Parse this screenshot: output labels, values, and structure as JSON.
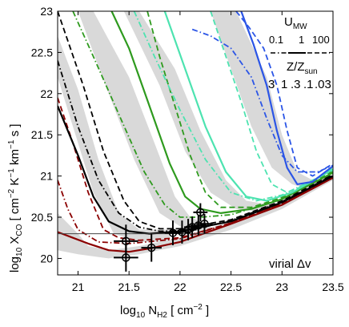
{
  "chart_data": {
    "type": "line",
    "xlabel": {
      "prefix": "log",
      "sub": "10",
      "main": " N",
      "mainsub": "H2",
      "unit": " [ cm",
      "unitsup": "−2",
      "close": " ]"
    },
    "ylabel": {
      "prefix": "log",
      "sub": "10",
      "main": " X",
      "mainsub": "CO",
      "unit": " [ cm",
      "sup1": "−2",
      "k": " K",
      "sup2": "−1",
      "km": " km",
      "sup3": "−1",
      "s": " s ]"
    },
    "xlim": [
      20.8,
      23.5
    ],
    "ylim": [
      19.8,
      23.0
    ],
    "xticks": [
      21,
      21.5,
      22,
      22.5,
      23,
      23.5
    ],
    "xtick_labels": [
      "21",
      "21.5",
      "22",
      "22.5",
      "23",
      "23.5"
    ],
    "yticks": [
      20,
      20.5,
      21,
      21.5,
      22,
      22.5,
      23
    ],
    "ytick_labels": [
      "20",
      "20.5",
      "21",
      "21.5",
      "22",
      "22.5",
      "23"
    ],
    "hline": 20.3,
    "annotation": "virial Δv",
    "legend": {
      "umw_title": "U",
      "umw_title_sub": "MW",
      "umw_values": [
        "0.1",
        "1",
        "100"
      ],
      "z_title": "Z/Z",
      "z_title_sub": "sun",
      "z_values": [
        {
          "label": "3",
          "color": "#8b0000"
        },
        {
          "label": "1",
          "color": "#000000"
        },
        {
          "label": ".3",
          "color": "#2e9a1e"
        },
        {
          "label": ".1",
          "color": "#4de3b0"
        },
        {
          "label": ".03",
          "color": "#2b55e6"
        }
      ]
    },
    "bands": [
      {
        "points": [
          [
            20.8,
            20.55
          ],
          [
            21.0,
            20.3
          ],
          [
            21.1,
            20.15
          ],
          [
            21.3,
            20.1
          ],
          [
            21.6,
            20.15
          ],
          [
            22.0,
            20.25
          ],
          [
            22.5,
            20.45
          ],
          [
            23.0,
            20.7
          ],
          [
            23.5,
            21.0
          ],
          [
            23.5,
            20.95
          ],
          [
            23.0,
            20.6
          ],
          [
            22.5,
            20.35
          ],
          [
            22.0,
            20.15
          ],
          [
            21.6,
            20.05
          ],
          [
            21.3,
            20.0
          ],
          [
            21.0,
            20.05
          ],
          [
            20.8,
            20.1
          ]
        ]
      },
      {
        "points": [
          [
            20.8,
            22.7
          ],
          [
            21.0,
            22.05
          ],
          [
            21.2,
            21.2
          ],
          [
            21.4,
            20.55
          ],
          [
            21.6,
            20.35
          ],
          [
            21.9,
            20.35
          ],
          [
            21.9,
            20.2
          ],
          [
            21.6,
            20.2
          ],
          [
            21.35,
            20.3
          ],
          [
            21.15,
            20.8
          ],
          [
            21.0,
            21.4
          ],
          [
            20.8,
            22.2
          ]
        ]
      },
      {
        "points": [
          [
            21.15,
            23.0
          ],
          [
            21.5,
            22.2
          ],
          [
            21.75,
            21.4
          ],
          [
            21.95,
            20.75
          ],
          [
            22.1,
            20.5
          ],
          [
            22.3,
            20.4
          ],
          [
            22.3,
            20.3
          ],
          [
            22.05,
            20.35
          ],
          [
            21.8,
            20.55
          ],
          [
            21.55,
            21.2
          ],
          [
            21.3,
            22.0
          ],
          [
            21.0,
            23.0
          ]
        ]
      },
      {
        "points": [
          [
            21.6,
            23.0
          ],
          [
            21.95,
            22.3
          ],
          [
            22.2,
            21.55
          ],
          [
            22.45,
            20.95
          ],
          [
            22.65,
            20.7
          ],
          [
            22.9,
            20.65
          ],
          [
            22.9,
            20.55
          ],
          [
            22.55,
            20.6
          ],
          [
            22.3,
            20.8
          ],
          [
            22.05,
            21.3
          ],
          [
            21.8,
            22.1
          ],
          [
            21.45,
            23.0
          ]
        ]
      },
      {
        "points": [
          [
            22.55,
            23.0
          ],
          [
            22.85,
            22.2
          ],
          [
            23.0,
            21.5
          ],
          [
            23.15,
            21.05
          ],
          [
            23.3,
            20.95
          ],
          [
            23.3,
            20.82
          ],
          [
            23.1,
            20.9
          ],
          [
            22.9,
            21.1
          ],
          [
            22.7,
            21.6
          ],
          [
            22.5,
            22.3
          ],
          [
            22.3,
            23.0
          ]
        ]
      }
    ],
    "series": [
      {
        "color": "#8b0000",
        "style": "solid",
        "points": [
          [
            20.8,
            20.32
          ],
          [
            20.95,
            20.25
          ],
          [
            21.1,
            20.18
          ],
          [
            21.3,
            20.1
          ],
          [
            21.5,
            20.08
          ],
          [
            21.7,
            20.12
          ],
          [
            22.0,
            20.2
          ],
          [
            22.5,
            20.42
          ],
          [
            23.0,
            20.65
          ],
          [
            23.5,
            20.98
          ]
        ]
      },
      {
        "color": "#8b0000",
        "style": "dash",
        "points": [
          [
            20.8,
            21.95
          ],
          [
            20.95,
            21.4
          ],
          [
            21.1,
            20.8
          ],
          [
            21.25,
            20.35
          ],
          [
            21.4,
            20.25
          ],
          [
            21.6,
            20.22
          ],
          [
            22.0,
            20.25
          ],
          [
            22.5,
            20.43
          ],
          [
            23.0,
            20.67
          ],
          [
            23.5,
            21.0
          ]
        ]
      },
      {
        "color": "#8b0000",
        "style": "dashdot",
        "points": [
          [
            20.8,
            20.95
          ],
          [
            20.9,
            20.6
          ],
          [
            21.0,
            20.35
          ],
          [
            21.2,
            20.2
          ],
          [
            21.5,
            20.18
          ],
          [
            22.0,
            20.24
          ],
          [
            22.5,
            20.43
          ],
          [
            23.0,
            20.66
          ],
          [
            23.5,
            20.99
          ]
        ]
      },
      {
        "color": "#000000",
        "style": "solid",
        "points": [
          [
            20.8,
            21.85
          ],
          [
            21.0,
            21.25
          ],
          [
            21.15,
            20.75
          ],
          [
            21.3,
            20.45
          ],
          [
            21.5,
            20.33
          ],
          [
            21.7,
            20.3
          ],
          [
            22.0,
            20.33
          ],
          [
            22.5,
            20.45
          ],
          [
            23.0,
            20.68
          ],
          [
            23.5,
            21.0
          ]
        ]
      },
      {
        "color": "#000000",
        "style": "dash",
        "points": [
          [
            20.8,
            23.0
          ],
          [
            21.05,
            22.1
          ],
          [
            21.25,
            21.3
          ],
          [
            21.45,
            20.7
          ],
          [
            21.6,
            20.45
          ],
          [
            21.8,
            20.36
          ],
          [
            22.0,
            20.36
          ],
          [
            22.5,
            20.47
          ],
          [
            23.0,
            20.7
          ],
          [
            23.5,
            21.02
          ]
        ]
      },
      {
        "color": "#000000",
        "style": "dashdot",
        "points": [
          [
            20.8,
            22.4
          ],
          [
            21.0,
            21.6
          ],
          [
            21.2,
            20.95
          ],
          [
            21.4,
            20.55
          ],
          [
            21.6,
            20.38
          ],
          [
            21.8,
            20.33
          ],
          [
            22.1,
            20.34
          ],
          [
            22.5,
            20.46
          ],
          [
            23.0,
            20.69
          ],
          [
            23.5,
            21.01
          ]
        ]
      },
      {
        "color": "#2e9a1e",
        "style": "solid",
        "points": [
          [
            21.33,
            23.0
          ],
          [
            21.5,
            22.55
          ],
          [
            21.7,
            21.85
          ],
          [
            21.9,
            21.15
          ],
          [
            22.05,
            20.75
          ],
          [
            22.2,
            20.6
          ],
          [
            22.4,
            20.55
          ],
          [
            22.7,
            20.6
          ],
          [
            23.0,
            20.72
          ],
          [
            23.5,
            21.04
          ]
        ]
      },
      {
        "color": "#2e9a1e",
        "style": "dash",
        "points": [
          [
            21.68,
            23.0
          ],
          [
            21.8,
            22.45
          ],
          [
            21.95,
            21.85
          ],
          [
            22.1,
            21.25
          ],
          [
            22.25,
            20.8
          ],
          [
            22.4,
            20.62
          ],
          [
            22.7,
            20.62
          ],
          [
            23.0,
            20.74
          ],
          [
            23.5,
            21.06
          ]
        ]
      },
      {
        "color": "#2e9a1e",
        "style": "dashdot",
        "points": [
          [
            20.95,
            23.0
          ],
          [
            21.15,
            22.45
          ],
          [
            21.4,
            21.75
          ],
          [
            21.65,
            21.05
          ],
          [
            21.85,
            20.65
          ],
          [
            22.0,
            20.5
          ],
          [
            22.2,
            20.5
          ],
          [
            22.5,
            20.53
          ],
          [
            23.0,
            20.72
          ],
          [
            23.5,
            21.04
          ]
        ]
      },
      {
        "color": "#4de3b0",
        "style": "solid",
        "points": [
          [
            21.85,
            23.0
          ],
          [
            22.05,
            22.3
          ],
          [
            22.25,
            21.6
          ],
          [
            22.45,
            21.05
          ],
          [
            22.65,
            20.75
          ],
          [
            22.85,
            20.7
          ],
          [
            23.1,
            20.8
          ],
          [
            23.5,
            21.08
          ]
        ]
      },
      {
        "color": "#4de3b0",
        "style": "dash",
        "points": [
          [
            22.3,
            23.0
          ],
          [
            22.45,
            22.45
          ],
          [
            22.6,
            21.9
          ],
          [
            22.75,
            21.3
          ],
          [
            22.9,
            20.9
          ],
          [
            23.05,
            20.8
          ],
          [
            23.25,
            20.9
          ],
          [
            23.5,
            21.1
          ]
        ]
      },
      {
        "color": "#4de3b0",
        "style": "dashdot",
        "points": [
          [
            21.55,
            23.0
          ],
          [
            21.75,
            22.45
          ],
          [
            22.0,
            21.8
          ],
          [
            22.25,
            21.2
          ],
          [
            22.5,
            20.8
          ],
          [
            22.75,
            20.7
          ],
          [
            23.0,
            20.77
          ],
          [
            23.5,
            21.07
          ]
        ]
      },
      {
        "color": "#2b55e6",
        "style": "solid",
        "points": [
          [
            22.6,
            23.0
          ],
          [
            22.72,
            22.6
          ],
          [
            22.85,
            22.1
          ],
          [
            22.95,
            21.55
          ],
          [
            23.05,
            21.1
          ],
          [
            23.15,
            20.9
          ],
          [
            23.3,
            20.93
          ],
          [
            23.5,
            21.12
          ]
        ]
      },
      {
        "color": "#2b55e6",
        "style": "dash",
        "points": [
          [
            22.55,
            23.0
          ],
          [
            22.68,
            22.8
          ],
          [
            22.82,
            22.55
          ],
          [
            22.95,
            22.1
          ],
          [
            23.05,
            21.55
          ],
          [
            23.15,
            21.1
          ],
          [
            23.3,
            21.0
          ],
          [
            23.5,
            21.15
          ]
        ]
      },
      {
        "color": "#2b55e6",
        "style": "dashdot",
        "points": [
          [
            22.12,
            22.78
          ],
          [
            22.3,
            22.7
          ],
          [
            22.5,
            22.55
          ],
          [
            22.7,
            22.2
          ],
          [
            22.85,
            21.7
          ],
          [
            23.0,
            21.25
          ],
          [
            23.15,
            21.05
          ],
          [
            23.35,
            21.05
          ],
          [
            23.5,
            21.13
          ]
        ]
      }
    ],
    "observations": [
      {
        "x": 21.47,
        "y": 20.21,
        "xerr": 0.12,
        "yerr": 0.2
      },
      {
        "x": 21.47,
        "y": 20.01,
        "xerr": 0.12,
        "yerr": 0.17
      },
      {
        "x": 21.72,
        "y": 20.13,
        "xerr": 0.1,
        "yerr": 0.17
      },
      {
        "x": 21.93,
        "y": 20.31,
        "xerr": 0.08,
        "yerr": 0.15
      },
      {
        "x": 22.02,
        "y": 20.32,
        "xerr": 0.08,
        "yerr": 0.14
      },
      {
        "x": 22.08,
        "y": 20.35,
        "xerr": 0.08,
        "yerr": 0.13
      },
      {
        "x": 22.12,
        "y": 20.38,
        "xerr": 0.08,
        "yerr": 0.13
      },
      {
        "x": 22.18,
        "y": 20.4,
        "xerr": 0.08,
        "yerr": 0.12
      },
      {
        "x": 22.24,
        "y": 20.42,
        "xerr": 0.08,
        "yerr": 0.12
      },
      {
        "x": 22.2,
        "y": 20.56,
        "xerr": 0.07,
        "yerr": 0.11
      }
    ]
  }
}
